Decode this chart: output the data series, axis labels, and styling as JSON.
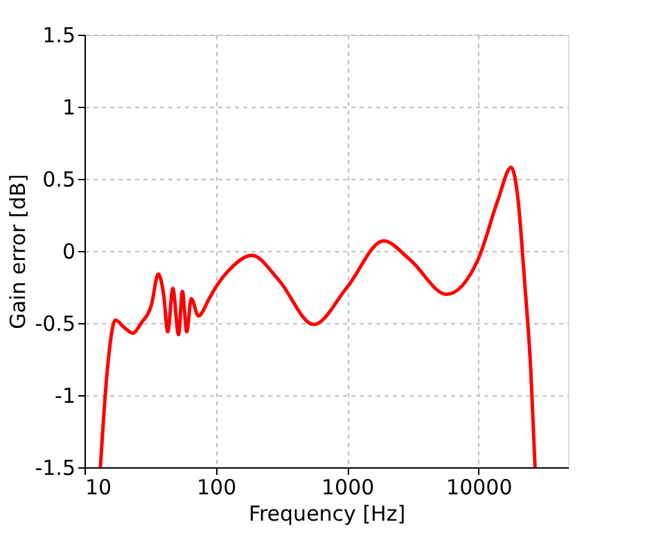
{
  "chart_data": {
    "type": "line",
    "xlabel": "Frequency [Hz]",
    "ylabel": "Gain error [dB]",
    "log": "x",
    "xlim": [
      10,
      48000
    ],
    "xticks": [
      10,
      100,
      1000,
      10000
    ],
    "ylim": [
      -1.5,
      1.5
    ],
    "yticks": [
      -1.5,
      -1,
      -0.5,
      0,
      0.5,
      1,
      1.5
    ],
    "grid": true,
    "marker": "none",
    "line_style": "solid",
    "series": [
      {
        "color": "#ff0000",
        "x": [
          13.2,
          15,
          17.2,
          20,
          23.3,
          27,
          32.4,
          36.4,
          40,
          43,
          47,
          52,
          55.6,
          60,
          65,
          73.6,
          89,
          100,
          130,
          188,
          300,
          556,
          1000,
          1890,
          3000,
          5700,
          10000,
          14000,
          17700,
          20000,
          22300,
          25000,
          26900
        ],
        "values": [
          -1.5,
          -0.8,
          -0.48,
          -0.53,
          -0.57,
          -0.5,
          -0.37,
          -0.16,
          -0.3,
          -0.56,
          -0.26,
          -0.58,
          -0.28,
          -0.56,
          -0.33,
          -0.45,
          -0.33,
          -0.25,
          -0.12,
          -0.03,
          -0.2,
          -0.51,
          -0.25,
          0.07,
          -0.06,
          -0.3,
          -0.05,
          0.35,
          0.58,
          0.35,
          -0.19,
          -0.84,
          -1.5
        ]
      }
    ]
  }
}
